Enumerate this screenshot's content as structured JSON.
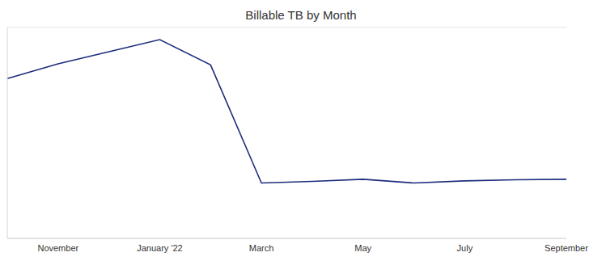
{
  "chart_data": {
    "type": "line",
    "title": "Billable TB by Month",
    "categories": [
      null,
      "November",
      null,
      "January '22",
      null,
      "March",
      null,
      "May",
      null,
      "July",
      null,
      "September"
    ],
    "values": [
      3.03,
      3.31,
      3.54,
      3.77,
      3.29,
      1.05,
      1.08,
      1.12,
      1.05,
      1.09,
      1.11,
      1.12
    ],
    "color": "#1c2d7c",
    "ylim": [
      0,
      4
    ],
    "yticks": [
      0,
      1,
      2,
      3
    ],
    "grid": true,
    "tick_labels": "x"
  }
}
